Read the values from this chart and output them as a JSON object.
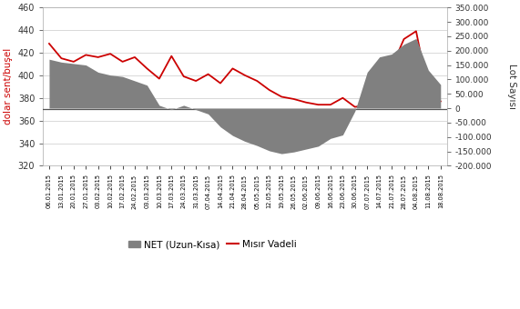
{
  "dates": [
    "06.01.2015",
    "13.01.2015",
    "20.01.2015",
    "27.01.2015",
    "03.02.2015",
    "10.02.2015",
    "17.02.2015",
    "24.02.2015",
    "03.03.2015",
    "10.03.2015",
    "17.03.2015",
    "24.03.2015",
    "31.03.2015",
    "07.04.2015",
    "14.04.2015",
    "21.04.2015",
    "28.04.2015",
    "05.05.2015",
    "12.05.2015",
    "19.05.2015",
    "26.05.2015",
    "02.06.2015",
    "09.06.2015",
    "16.06.2015",
    "23.06.2015",
    "30.06.2015",
    "07.07.2015",
    "14.07.2015",
    "21.07.2015",
    "28.07.2015",
    "04.08.2015",
    "11.08.2015",
    "18.08.2015"
  ],
  "net_lots": [
    170000,
    160000,
    155000,
    150000,
    125000,
    115000,
    110000,
    95000,
    80000,
    10000,
    -5000,
    10000,
    -5000,
    -20000,
    -65000,
    -95000,
    -115000,
    -130000,
    -148000,
    -158000,
    -152000,
    -142000,
    -132000,
    -105000,
    -93000,
    -10000,
    125000,
    178000,
    188000,
    222000,
    242000,
    132000,
    82000
  ],
  "futures_price": [
    428,
    415,
    412,
    418,
    416,
    419,
    412,
    416,
    406,
    397,
    417,
    399,
    395,
    401,
    393,
    406,
    400,
    395,
    387,
    381,
    379,
    376,
    374,
    374,
    380,
    372,
    374,
    381,
    407,
    432,
    439,
    385,
    377
  ],
  "hline_value": 370,
  "left_ylim": [
    320,
    460
  ],
  "right_ylim": [
    -200000,
    350000
  ],
  "left_yticks": [
    320,
    340,
    360,
    380,
    400,
    420,
    440,
    460
  ],
  "right_yticks": [
    -200000,
    -150000,
    -100000,
    -50000,
    0,
    50000,
    100000,
    150000,
    200000,
    250000,
    300000,
    350000
  ],
  "right_yticklabels": [
    "-200.000",
    "-150.000",
    "-100.000",
    "-50.000",
    "0",
    "50.000",
    "100.000",
    "150.000",
    "200.000",
    "250.000",
    "300.000",
    "350.000"
  ],
  "ylabel_left": "dolar sent/buşel",
  "ylabel_right": "Lot Sayısı",
  "bar_color": "#808080",
  "line_color": "#cc0000",
  "hline_color": "#555555",
  "legend_net": "NET (Uzun-Kısa)",
  "legend_futures": "Mısır Vadeli",
  "bg_color": "#ffffff",
  "grid_color": "#d3d3d3"
}
